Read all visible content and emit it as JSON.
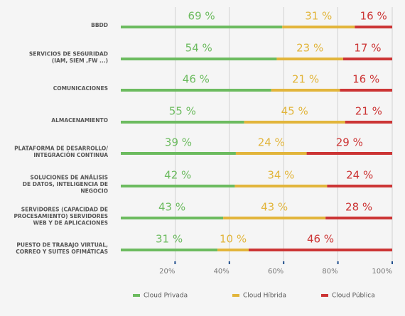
{
  "chart_data": {
    "type": "bar",
    "orientation": "horizontal",
    "stacked": "percent",
    "categories": [
      [
        "BBDD"
      ],
      [
        "SERVICIOS DE SEGURIDAD",
        "(IAM, SIEM ,FW ...)"
      ],
      [
        "COMUNICACIONES"
      ],
      [
        "ALMACENAMIENTO"
      ],
      [
        "PLATAFORMA DE DESARROLLO/",
        "INTEGRACIÓN CONTINUA"
      ],
      [
        "SOLUCIONES DE ANÁLISIS",
        "DE DATOS, INTELIGENCIA DE",
        "NEGOCIO"
      ],
      [
        "SERVIDORES (CAPACIDAD DE",
        "PROCESAMIENTO) SERVIDORES",
        "WEB Y DE APLICACIONES"
      ],
      [
        "PUESTO DE TRABAJO VIRTUAL,",
        "CORREO Y SUITES OFIMÁTICAS"
      ]
    ],
    "series": [
      {
        "name": "Cloud Privada",
        "color": "#6cbb5f",
        "values": [
          69,
          54,
          46,
          55,
          39,
          42,
          43,
          31
        ],
        "value_labels": [
          "69 %",
          "54 %",
          "46 %",
          "55 %",
          "39 %",
          "42 %",
          "43 %",
          "31 %"
        ]
      },
      {
        "name": "Cloud Híbrida",
        "color": "#e2b53b",
        "values": [
          31,
          23,
          21,
          45,
          24,
          34,
          43,
          10
        ],
        "value_labels": [
          "31 %",
          "23 %",
          "21 %",
          "45 %",
          "24 %",
          "34 %",
          "43 %",
          "10 %"
        ]
      },
      {
        "name": "Cloud Pública",
        "color": "#cc3535",
        "values": [
          16,
          17,
          16,
          21,
          29,
          24,
          28,
          46
        ],
        "value_labels": [
          "16 %",
          "17 %",
          "16 %",
          "21 %",
          "29 %",
          "24 %",
          "28 %",
          "46 %"
        ]
      }
    ],
    "xlim": [
      0,
      100
    ],
    "xticks": [
      {
        "value": 20,
        "label": "20%"
      },
      {
        "value": 40,
        "label": "40%"
      },
      {
        "value": 60,
        "label": "60%"
      },
      {
        "value": 80,
        "label": "80%"
      },
      {
        "value": 100,
        "label": "100%"
      }
    ],
    "grid": true,
    "legend": "bottom"
  }
}
